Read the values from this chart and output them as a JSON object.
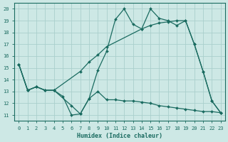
{
  "xlabel": "Humidex (Indice chaleur)",
  "background_color": "#cde8e5",
  "grid_color": "#aacfcc",
  "line_color": "#1a6b60",
  "xlim": [
    -0.5,
    23.5
  ],
  "ylim": [
    10.5,
    20.5
  ],
  "xticks": [
    0,
    1,
    2,
    3,
    4,
    5,
    6,
    7,
    8,
    9,
    10,
    11,
    12,
    13,
    14,
    15,
    16,
    17,
    18,
    19,
    20,
    21,
    22,
    23
  ],
  "yticks": [
    11,
    12,
    13,
    14,
    15,
    16,
    17,
    18,
    19,
    20
  ],
  "series1_x": [
    0,
    1,
    2,
    3,
    4,
    5,
    6,
    7,
    8,
    9,
    10,
    11,
    12,
    13,
    14,
    15,
    16,
    17,
    18,
    19,
    20,
    21,
    22,
    23
  ],
  "series1_y": [
    15.3,
    13.1,
    13.4,
    13.1,
    13.1,
    12.6,
    11.0,
    11.1,
    12.4,
    13.0,
    12.3,
    12.3,
    12.2,
    12.2,
    12.1,
    12.0,
    11.8,
    11.7,
    11.6,
    11.5,
    11.4,
    11.3,
    11.3,
    11.2
  ],
  "series2_x": [
    0,
    1,
    2,
    3,
    4,
    7,
    8,
    9,
    10,
    14,
    15,
    16,
    17,
    18,
    19,
    20,
    21,
    22,
    23
  ],
  "series2_y": [
    15.3,
    13.1,
    13.4,
    13.1,
    13.1,
    14.7,
    15.5,
    16.1,
    16.8,
    18.3,
    18.6,
    18.8,
    18.9,
    19.0,
    19.0,
    17.0,
    14.7,
    12.2,
    11.2
  ],
  "series3_x": [
    0,
    1,
    2,
    3,
    4,
    6,
    7,
    8,
    9,
    10,
    11,
    12,
    13,
    14,
    15,
    16,
    17,
    18,
    19,
    20,
    21,
    22,
    23
  ],
  "series3_y": [
    15.3,
    13.1,
    13.4,
    13.1,
    13.1,
    11.8,
    11.1,
    12.4,
    14.8,
    16.4,
    19.1,
    20.0,
    18.7,
    18.3,
    20.0,
    19.2,
    19.0,
    18.6,
    19.0,
    17.0,
    14.7,
    12.2,
    11.2
  ]
}
